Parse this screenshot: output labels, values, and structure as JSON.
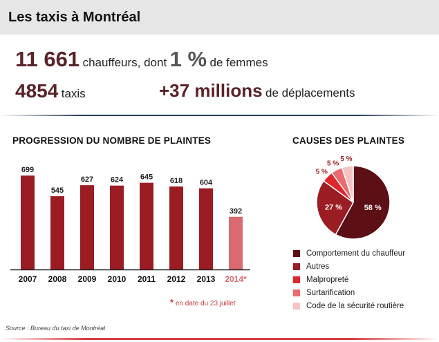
{
  "header": {
    "title": "Les taxis à Montréal"
  },
  "stats": {
    "drivers_value": "11 661",
    "drivers_text": "chauffeurs, dont",
    "women_value": "1 %",
    "women_text": "de femmes",
    "taxis_value": "4854",
    "taxis_text": "taxis",
    "trips_value": "+37 millions",
    "trips_text": "de déplacements"
  },
  "bar_section": {
    "title": "PROGRESSION DU NOMBRE DE PLAINTES"
  },
  "pie_section": {
    "title": "CAUSES DES PLAINTES"
  },
  "footnote": {
    "star": "*",
    "text": "en date du 23 juillet"
  },
  "source": {
    "label": "Source",
    "text": " : Bureau du taxi de Montréal"
  },
  "colors": {
    "bar": "#9b1c23",
    "bar_highlight": "#d96a6f",
    "highlight_label": "#d96a6f"
  },
  "chart_data": [
    {
      "type": "bar",
      "title": "PROGRESSION DU NOMBRE DE PLAINTES",
      "categories": [
        "2007",
        "2008",
        "2009",
        "2010",
        "2011",
        "2012",
        "2013",
        "2014*"
      ],
      "values": [
        699,
        545,
        627,
        624,
        645,
        618,
        604,
        392
      ],
      "ylim": [
        0,
        720
      ],
      "highlight_index": 7,
      "grid": false
    },
    {
      "type": "pie",
      "title": "CAUSES DES PLAINTES",
      "labels": [
        "Comportement du chauffeur",
        "Autres",
        "Malpropreté",
        "Surtarification",
        "Code de la sécurité routière"
      ],
      "values": [
        58,
        27,
        5,
        5,
        5
      ],
      "value_labels": [
        "58 %",
        "27 %",
        "5 %",
        "5 %",
        "5 %"
      ],
      "colors": [
        "#5c0f14",
        "#9b1c23",
        "#e0262d",
        "#ec6b6e",
        "#f6c3c5"
      ],
      "legend": "bottom"
    }
  ]
}
